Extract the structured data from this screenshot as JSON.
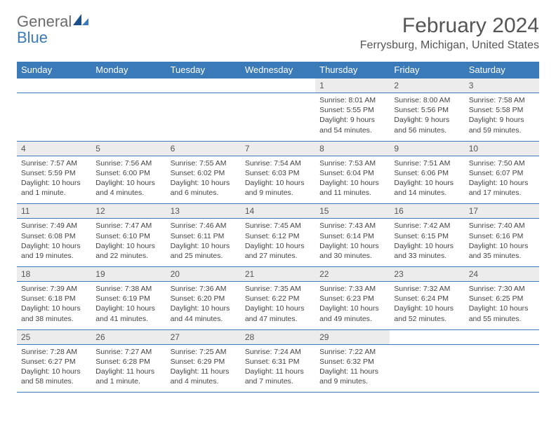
{
  "logo": {
    "general": "General",
    "blue": "Blue"
  },
  "title": "February 2024",
  "location": "Ferrysburg, Michigan, United States",
  "colors": {
    "header_bg": "#3a7ab8",
    "header_text": "#ffffff",
    "daynum_bg": "#ececec",
    "border": "#3a7ab8",
    "logo_gray": "#6b6b6b",
    "logo_blue": "#3a7ab8"
  },
  "weekdays": [
    "Sunday",
    "Monday",
    "Tuesday",
    "Wednesday",
    "Thursday",
    "Friday",
    "Saturday"
  ],
  "weeks": [
    [
      null,
      null,
      null,
      null,
      {
        "day": "1",
        "sunrise": "Sunrise: 8:01 AM",
        "sunset": "Sunset: 5:55 PM",
        "daylight": "Daylight: 9 hours and 54 minutes."
      },
      {
        "day": "2",
        "sunrise": "Sunrise: 8:00 AM",
        "sunset": "Sunset: 5:56 PM",
        "daylight": "Daylight: 9 hours and 56 minutes."
      },
      {
        "day": "3",
        "sunrise": "Sunrise: 7:58 AM",
        "sunset": "Sunset: 5:58 PM",
        "daylight": "Daylight: 9 hours and 59 minutes."
      }
    ],
    [
      {
        "day": "4",
        "sunrise": "Sunrise: 7:57 AM",
        "sunset": "Sunset: 5:59 PM",
        "daylight": "Daylight: 10 hours and 1 minute."
      },
      {
        "day": "5",
        "sunrise": "Sunrise: 7:56 AM",
        "sunset": "Sunset: 6:00 PM",
        "daylight": "Daylight: 10 hours and 4 minutes."
      },
      {
        "day": "6",
        "sunrise": "Sunrise: 7:55 AM",
        "sunset": "Sunset: 6:02 PM",
        "daylight": "Daylight: 10 hours and 6 minutes."
      },
      {
        "day": "7",
        "sunrise": "Sunrise: 7:54 AM",
        "sunset": "Sunset: 6:03 PM",
        "daylight": "Daylight: 10 hours and 9 minutes."
      },
      {
        "day": "8",
        "sunrise": "Sunrise: 7:53 AM",
        "sunset": "Sunset: 6:04 PM",
        "daylight": "Daylight: 10 hours and 11 minutes."
      },
      {
        "day": "9",
        "sunrise": "Sunrise: 7:51 AM",
        "sunset": "Sunset: 6:06 PM",
        "daylight": "Daylight: 10 hours and 14 minutes."
      },
      {
        "day": "10",
        "sunrise": "Sunrise: 7:50 AM",
        "sunset": "Sunset: 6:07 PM",
        "daylight": "Daylight: 10 hours and 17 minutes."
      }
    ],
    [
      {
        "day": "11",
        "sunrise": "Sunrise: 7:49 AM",
        "sunset": "Sunset: 6:08 PM",
        "daylight": "Daylight: 10 hours and 19 minutes."
      },
      {
        "day": "12",
        "sunrise": "Sunrise: 7:47 AM",
        "sunset": "Sunset: 6:10 PM",
        "daylight": "Daylight: 10 hours and 22 minutes."
      },
      {
        "day": "13",
        "sunrise": "Sunrise: 7:46 AM",
        "sunset": "Sunset: 6:11 PM",
        "daylight": "Daylight: 10 hours and 25 minutes."
      },
      {
        "day": "14",
        "sunrise": "Sunrise: 7:45 AM",
        "sunset": "Sunset: 6:12 PM",
        "daylight": "Daylight: 10 hours and 27 minutes."
      },
      {
        "day": "15",
        "sunrise": "Sunrise: 7:43 AM",
        "sunset": "Sunset: 6:14 PM",
        "daylight": "Daylight: 10 hours and 30 minutes."
      },
      {
        "day": "16",
        "sunrise": "Sunrise: 7:42 AM",
        "sunset": "Sunset: 6:15 PM",
        "daylight": "Daylight: 10 hours and 33 minutes."
      },
      {
        "day": "17",
        "sunrise": "Sunrise: 7:40 AM",
        "sunset": "Sunset: 6:16 PM",
        "daylight": "Daylight: 10 hours and 35 minutes."
      }
    ],
    [
      {
        "day": "18",
        "sunrise": "Sunrise: 7:39 AM",
        "sunset": "Sunset: 6:18 PM",
        "daylight": "Daylight: 10 hours and 38 minutes."
      },
      {
        "day": "19",
        "sunrise": "Sunrise: 7:38 AM",
        "sunset": "Sunset: 6:19 PM",
        "daylight": "Daylight: 10 hours and 41 minutes."
      },
      {
        "day": "20",
        "sunrise": "Sunrise: 7:36 AM",
        "sunset": "Sunset: 6:20 PM",
        "daylight": "Daylight: 10 hours and 44 minutes."
      },
      {
        "day": "21",
        "sunrise": "Sunrise: 7:35 AM",
        "sunset": "Sunset: 6:22 PM",
        "daylight": "Daylight: 10 hours and 47 minutes."
      },
      {
        "day": "22",
        "sunrise": "Sunrise: 7:33 AM",
        "sunset": "Sunset: 6:23 PM",
        "daylight": "Daylight: 10 hours and 49 minutes."
      },
      {
        "day": "23",
        "sunrise": "Sunrise: 7:32 AM",
        "sunset": "Sunset: 6:24 PM",
        "daylight": "Daylight: 10 hours and 52 minutes."
      },
      {
        "day": "24",
        "sunrise": "Sunrise: 7:30 AM",
        "sunset": "Sunset: 6:25 PM",
        "daylight": "Daylight: 10 hours and 55 minutes."
      }
    ],
    [
      {
        "day": "25",
        "sunrise": "Sunrise: 7:28 AM",
        "sunset": "Sunset: 6:27 PM",
        "daylight": "Daylight: 10 hours and 58 minutes."
      },
      {
        "day": "26",
        "sunrise": "Sunrise: 7:27 AM",
        "sunset": "Sunset: 6:28 PM",
        "daylight": "Daylight: 11 hours and 1 minute."
      },
      {
        "day": "27",
        "sunrise": "Sunrise: 7:25 AM",
        "sunset": "Sunset: 6:29 PM",
        "daylight": "Daylight: 11 hours and 4 minutes."
      },
      {
        "day": "28",
        "sunrise": "Sunrise: 7:24 AM",
        "sunset": "Sunset: 6:31 PM",
        "daylight": "Daylight: 11 hours and 7 minutes."
      },
      {
        "day": "29",
        "sunrise": "Sunrise: 7:22 AM",
        "sunset": "Sunset: 6:32 PM",
        "daylight": "Daylight: 11 hours and 9 minutes."
      },
      null,
      null
    ]
  ]
}
